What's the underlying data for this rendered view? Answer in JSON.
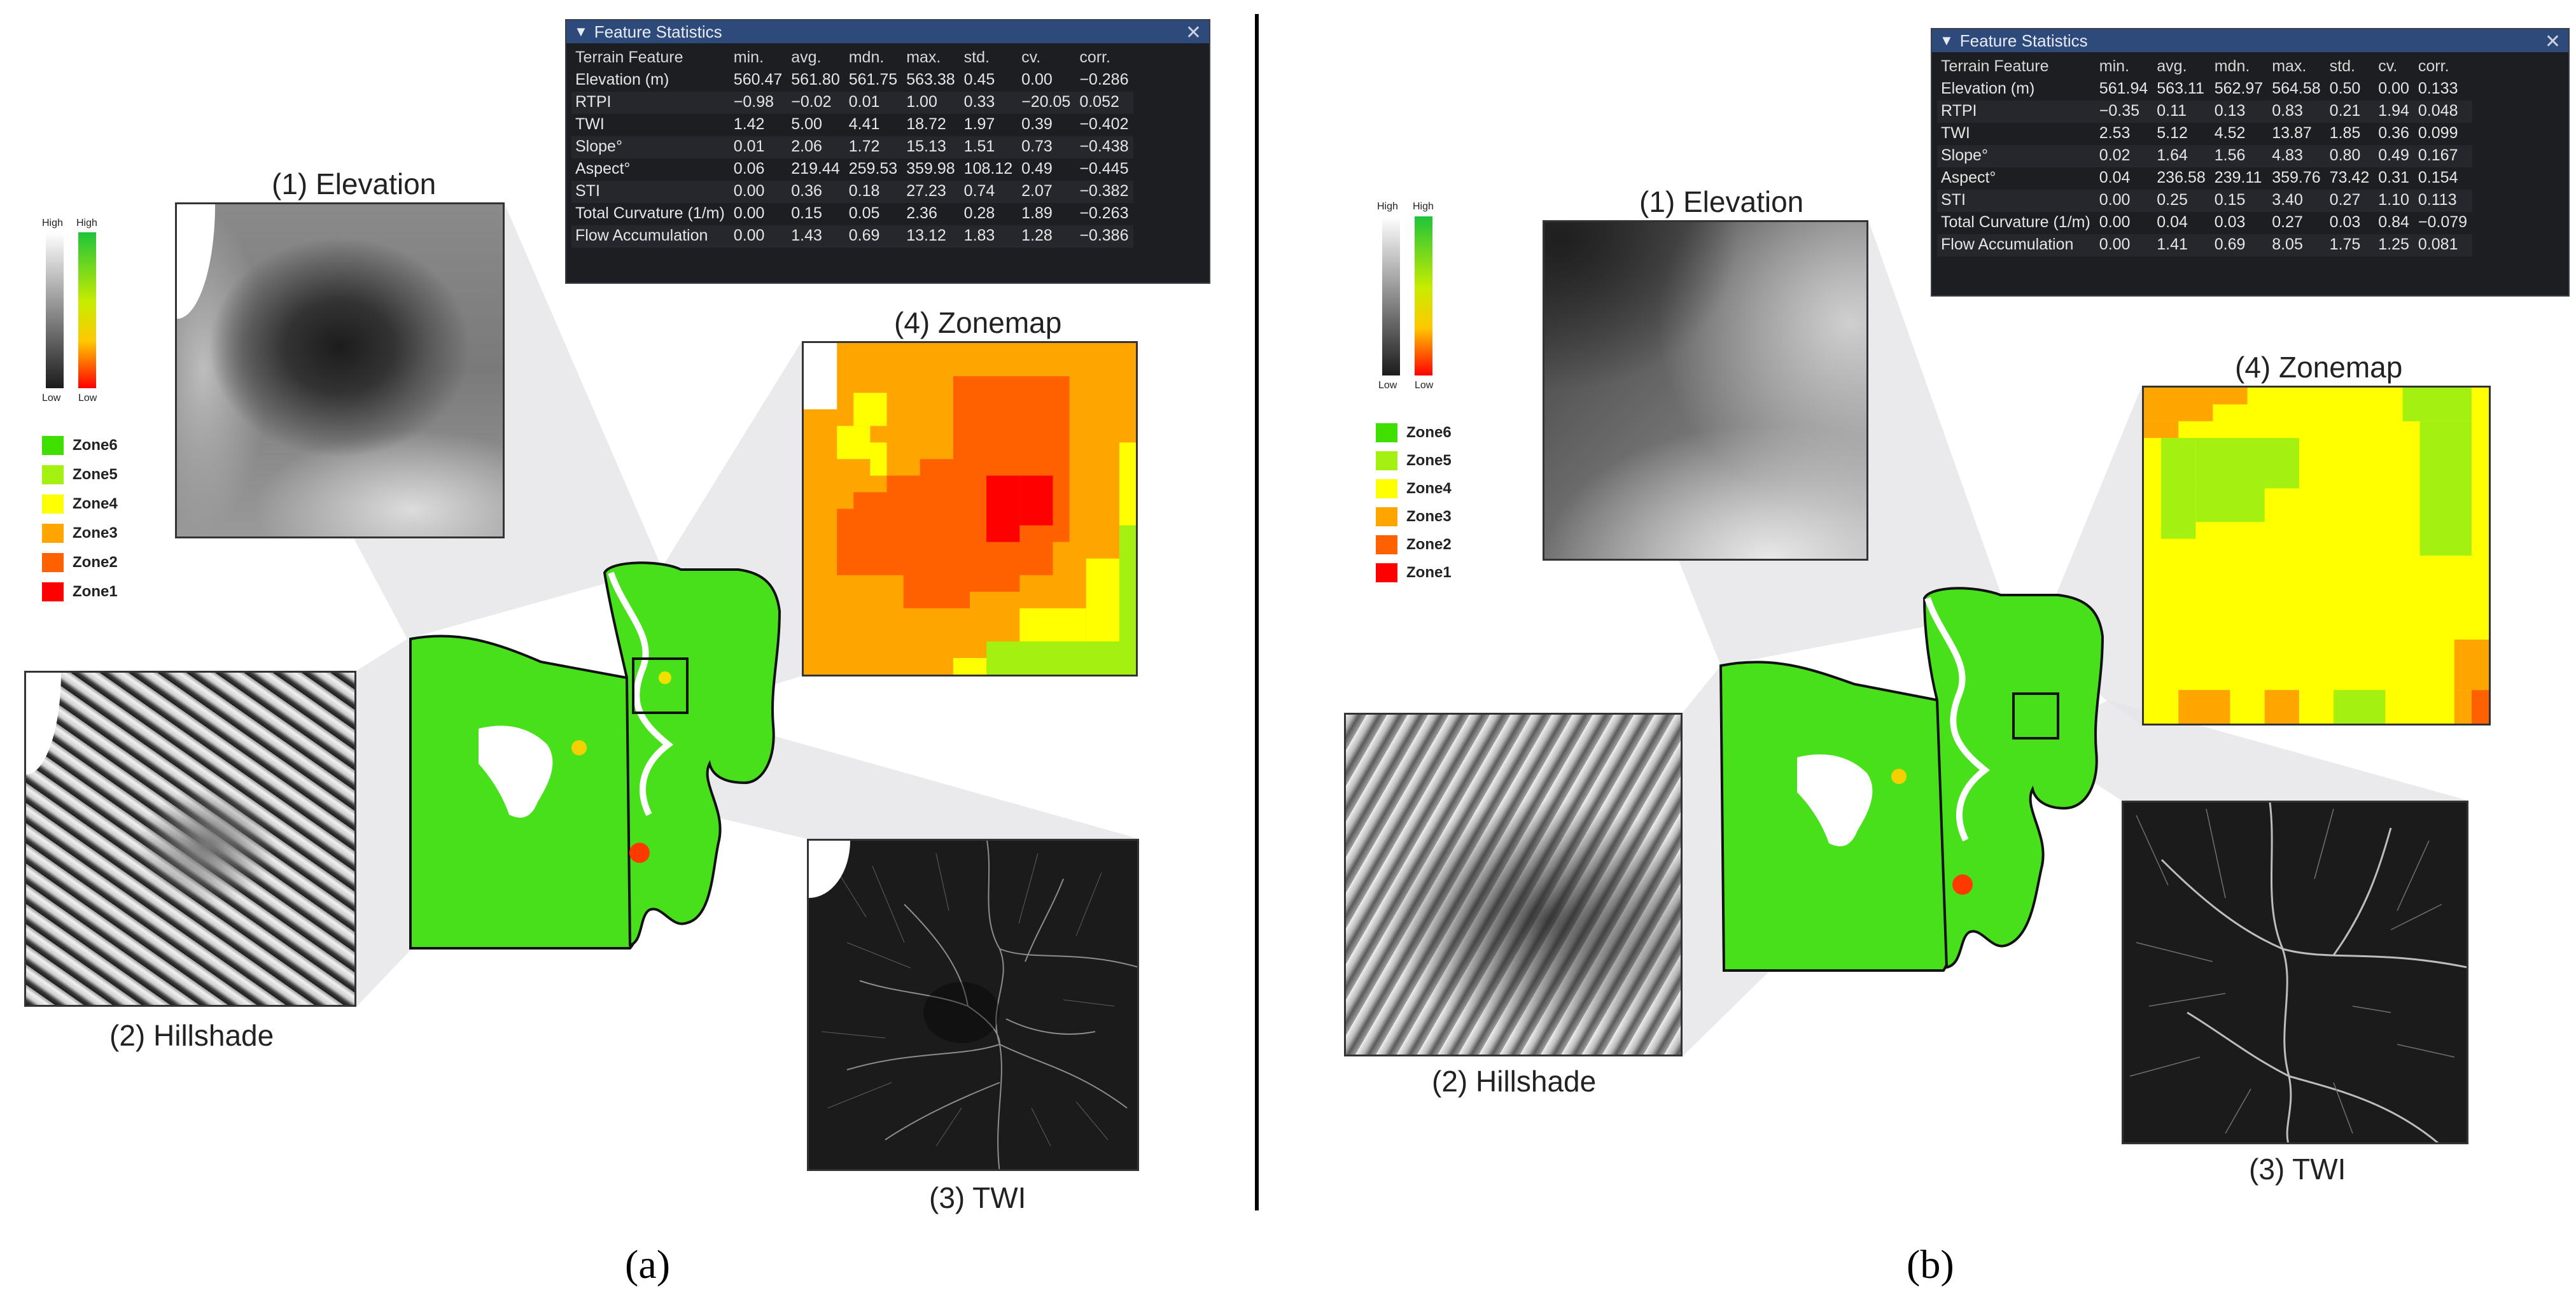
{
  "captions": {
    "a": "(a)",
    "b": "(b)"
  },
  "inset_labels": {
    "elevation": "(1) Elevation",
    "hillshade": "(2) Hillshade",
    "twi": "(3) TWI",
    "zonemap": "(4) Zonemap"
  },
  "colorbar": {
    "high": "High",
    "low": "Low"
  },
  "legend": [
    {
      "label": "Zone6",
      "color": "#3fe000"
    },
    {
      "label": "Zone5",
      "color": "#a3f011"
    },
    {
      "label": "Zone4",
      "color": "#ffff00"
    },
    {
      "label": "Zone3",
      "color": "#ffa500"
    },
    {
      "label": "Zone2",
      "color": "#ff6000"
    },
    {
      "label": "Zone1",
      "color": "#ff0000"
    }
  ],
  "stats_window": {
    "title": "Feature Statistics",
    "collapse_glyph": "▼",
    "close_glyph": "✕",
    "columns": [
      "Terrain Feature",
      "min.",
      "avg.",
      "mdn.",
      "max.",
      "std.",
      "cv.",
      "corr."
    ]
  },
  "panels": {
    "a": {
      "rows": [
        [
          "Elevation (m)",
          "560.47",
          "561.80",
          "561.75",
          "563.38",
          "0.45",
          "0.00",
          "−0.286"
        ],
        [
          "RTPI",
          "−0.98",
          "−0.02",
          "0.01",
          "1.00",
          "0.33",
          "−20.05",
          "0.052"
        ],
        [
          "TWI",
          "1.42",
          "5.00",
          "4.41",
          "18.72",
          "1.97",
          "0.39",
          "−0.402"
        ],
        [
          "Slope°",
          "0.01",
          "2.06",
          "1.72",
          "15.13",
          "1.51",
          "0.73",
          "−0.438"
        ],
        [
          "Aspect°",
          "0.06",
          "219.44",
          "259.53",
          "359.98",
          "108.12",
          "0.49",
          "−0.445"
        ],
        [
          "STI",
          "0.00",
          "0.36",
          "0.18",
          "27.23",
          "0.74",
          "2.07",
          "−0.382"
        ],
        [
          "Total Curvature (1/m)",
          "0.00",
          "0.15",
          "0.05",
          "2.36",
          "0.28",
          "1.89",
          "−0.263"
        ],
        [
          "Flow Accumulation",
          "0.00",
          "1.43",
          "0.69",
          "13.12",
          "1.83",
          "1.28",
          "−0.386"
        ]
      ]
    },
    "b": {
      "rows": [
        [
          "Elevation (m)",
          "561.94",
          "563.11",
          "562.97",
          "564.58",
          "0.50",
          "0.00",
          "0.133"
        ],
        [
          "RTPI",
          "−0.35",
          "0.11",
          "0.13",
          "0.83",
          "0.21",
          "1.94",
          "0.048"
        ],
        [
          "TWI",
          "2.53",
          "5.12",
          "4.52",
          "13.87",
          "1.85",
          "0.36",
          "0.099"
        ],
        [
          "Slope°",
          "0.02",
          "1.64",
          "1.56",
          "4.83",
          "0.80",
          "0.49",
          "0.167"
        ],
        [
          "Aspect°",
          "0.04",
          "236.58",
          "239.11",
          "359.76",
          "73.42",
          "0.31",
          "0.154"
        ],
        [
          "STI",
          "0.00",
          "0.25",
          "0.15",
          "3.40",
          "0.27",
          "1.10",
          "0.113"
        ],
        [
          "Total Curvature (1/m)",
          "0.00",
          "0.04",
          "0.03",
          "0.27",
          "0.03",
          "0.84",
          "−0.079"
        ],
        [
          "Flow Accumulation",
          "0.00",
          "1.41",
          "0.69",
          "8.05",
          "1.75",
          "1.25",
          "0.081"
        ]
      ]
    }
  }
}
